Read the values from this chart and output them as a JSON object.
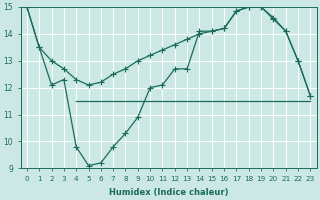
{
  "xlabel": "Humidex (Indice chaleur)",
  "bg_color": "#cce8e4",
  "grid_color": "#ffffff",
  "line_color": "#1a6b5a",
  "xlim": [
    -0.5,
    23.5
  ],
  "ylim": [
    9,
    15
  ],
  "yticks": [
    9,
    10,
    11,
    12,
    13,
    14,
    15
  ],
  "xticks": [
    0,
    1,
    2,
    3,
    4,
    5,
    6,
    7,
    8,
    9,
    10,
    11,
    12,
    13,
    14,
    15,
    16,
    17,
    18,
    19,
    20,
    21,
    22,
    23
  ],
  "line1_x": [
    0,
    1,
    2,
    3,
    4,
    5,
    6,
    7,
    8,
    9,
    10,
    11,
    12,
    13,
    14,
    15,
    16,
    17,
    18,
    19,
    20,
    21,
    22,
    23
  ],
  "line1_y": [
    15.0,
    13.5,
    13.0,
    12.7,
    12.3,
    12.1,
    12.2,
    12.5,
    12.7,
    13.0,
    13.2,
    13.4,
    13.6,
    13.8,
    14.0,
    14.1,
    14.2,
    14.85,
    15.0,
    15.0,
    14.55,
    14.1,
    13.0,
    11.7
  ],
  "line2_x": [
    4,
    5,
    6,
    7,
    8,
    9,
    10,
    11,
    12,
    13,
    14,
    15,
    16,
    17,
    18,
    19,
    20,
    21,
    22,
    23
  ],
  "line2_y": [
    11.5,
    11.5,
    11.5,
    11.5,
    11.5,
    11.5,
    11.5,
    11.5,
    11.5,
    11.5,
    11.5,
    11.5,
    11.5,
    11.5,
    11.5,
    11.5,
    11.5,
    11.5,
    11.5,
    11.5
  ],
  "line3_x": [
    0,
    1,
    2,
    3,
    4,
    5,
    6,
    7,
    8,
    9,
    10,
    11,
    12,
    13,
    14,
    15,
    16,
    17,
    18,
    19,
    20,
    21,
    22,
    23
  ],
  "line3_y": [
    15.0,
    13.5,
    12.1,
    12.3,
    9.8,
    9.1,
    9.2,
    9.8,
    10.3,
    10.9,
    12.0,
    12.1,
    12.7,
    12.7,
    14.1,
    14.1,
    14.2,
    14.85,
    15.0,
    15.0,
    14.6,
    14.1,
    13.0,
    11.7
  ]
}
